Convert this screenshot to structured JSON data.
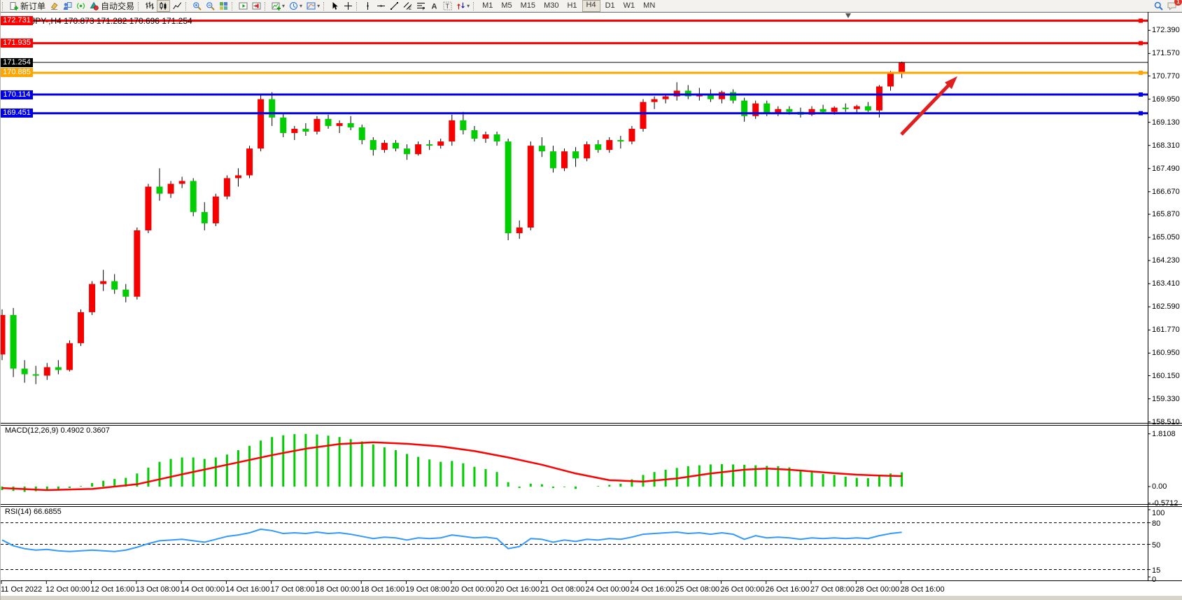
{
  "toolbar": {
    "new_order_label": "新订单",
    "autotrade_label": "自动交易",
    "groups": [
      {
        "buttons": [
          {
            "icon": "doc-plus",
            "name": "new-order-button",
            "label_key": "new_order_label"
          },
          {
            "icon": "ink",
            "name": "styler-button"
          },
          {
            "icon": "person",
            "name": "market-watch-button"
          },
          {
            "icon": "signal",
            "name": "signals-button"
          },
          {
            "icon": "autotrade",
            "name": "autotrade-button",
            "label_key": "autotrade_label"
          }
        ]
      },
      {
        "buttons": [
          {
            "icon": "bars",
            "name": "bar-chart-button"
          },
          {
            "icon": "candles",
            "name": "candlestick-button",
            "active": true
          },
          {
            "icon": "linechart",
            "name": "line-chart-button"
          }
        ]
      },
      {
        "buttons": [
          {
            "icon": "zoom-in",
            "name": "zoom-in-button"
          },
          {
            "icon": "zoom-out",
            "name": "zoom-out-button"
          },
          {
            "icon": "tile",
            "name": "tile-windows-button"
          }
        ]
      },
      {
        "buttons": [
          {
            "icon": "autoscroll",
            "name": "auto-scroll-button"
          },
          {
            "icon": "chart-shift",
            "name": "chart-shift-button"
          }
        ]
      },
      {
        "buttons": [
          {
            "icon": "indicators",
            "name": "indicators-button",
            "caret": true
          },
          {
            "icon": "clock",
            "name": "periods-button",
            "caret": true
          },
          {
            "icon": "template",
            "name": "templates-button",
            "caret": true
          }
        ]
      },
      {
        "buttons": [
          {
            "icon": "cursor",
            "name": "cursor-button"
          },
          {
            "icon": "crosshair",
            "name": "crosshair-button"
          }
        ]
      },
      {
        "buttons": [
          {
            "icon": "vline",
            "name": "vline-button"
          },
          {
            "icon": "hline",
            "name": "hline-button"
          },
          {
            "icon": "trendline",
            "name": "trendline-button"
          },
          {
            "icon": "channel",
            "name": "channel-button"
          },
          {
            "icon": "fibo",
            "name": "fibo-button"
          },
          {
            "icon": "text",
            "name": "text-button"
          },
          {
            "icon": "label",
            "name": "label-button"
          },
          {
            "icon": "shapes",
            "name": "shapes-button",
            "caret": true
          }
        ]
      }
    ],
    "timeframes": [
      {
        "label": "M1"
      },
      {
        "label": "M5"
      },
      {
        "label": "M15"
      },
      {
        "label": "M30"
      },
      {
        "label": "H1"
      },
      {
        "label": "H4",
        "active": true
      },
      {
        "label": "D1"
      },
      {
        "label": "W1"
      },
      {
        "label": "MN"
      }
    ],
    "right": [
      {
        "icon": "search",
        "name": "search-button"
      },
      {
        "icon": "comment",
        "name": "notifications-button",
        "badge": "1"
      }
    ]
  },
  "chart": {
    "title": "GBPJPY-,H4  170.873 171.282 170.696 171.254",
    "expand_glyph": "▼"
  },
  "panes": {
    "macd_label": "MACD(12,26,9) 0.4902 0.3607",
    "rsi_label": "RSI(14) 66.6855"
  },
  "chart_data": {
    "type": "candlestick",
    "symbol": "GBPJPY-",
    "period": "H4",
    "ohlc_display": {
      "open": 170.873,
      "high": 171.282,
      "low": 170.696,
      "close": 171.254
    },
    "up_color": "#F60000",
    "down_color": "#00CE00",
    "wick_color": "#000000",
    "price_ticks": [
      172.39,
      171.57,
      170.77,
      169.95,
      169.13,
      168.31,
      167.49,
      166.67,
      165.87,
      165.05,
      164.23,
      163.41,
      162.59,
      161.77,
      160.95,
      160.15,
      159.33,
      158.51
    ],
    "price_range": [
      158.51,
      172.731
    ],
    "hlines": [
      {
        "price": 172.731,
        "label": "172.731",
        "color": "#FF0000",
        "width": 3,
        "left_handle": true
      },
      {
        "price": 171.935,
        "label": "171.935",
        "color": "#FF0000",
        "width": 3
      },
      {
        "price": 171.254,
        "label": "171.254",
        "color": "#000000",
        "width": 1,
        "bid_line": true
      },
      {
        "price": 170.885,
        "label": "170.885",
        "color": "#FFA500",
        "width": 3
      },
      {
        "price": 170.114,
        "label": "170.114",
        "color": "#0000E8",
        "width": 3
      },
      {
        "price": 169.451,
        "label": "169.451",
        "color": "#0000E8",
        "width": 3
      }
    ],
    "time_labels": [
      "11 Oct 2022",
      "12 Oct 00:00",
      "12 Oct 16:00",
      "13 Oct 08:00",
      "14 Oct 00:00",
      "14 Oct 16:00",
      "17 Oct 08:00",
      "18 Oct 00:00",
      "18 Oct 16:00",
      "19 Oct 08:00",
      "20 Oct 00:00",
      "20 Oct 16:00",
      "21 Oct 08:00",
      "24 Oct 00:00",
      "24 Oct 16:00",
      "25 Oct 08:00",
      "26 Oct 00:00",
      "26 Oct 16:00",
      "27 Oct 08:00",
      "28 Oct 00:00",
      "28 Oct 16:00"
    ],
    "candles": [
      [
        160.9,
        162.5,
        160.7,
        162.3
      ],
      [
        162.3,
        162.55,
        160.1,
        160.4
      ],
      [
        160.4,
        160.7,
        159.9,
        160.2
      ],
      [
        160.2,
        160.5,
        159.85,
        160.15
      ],
      [
        160.15,
        160.6,
        160.0,
        160.45
      ],
      [
        160.45,
        160.7,
        160.2,
        160.35
      ],
      [
        160.35,
        161.4,
        160.3,
        161.3
      ],
      [
        161.3,
        162.5,
        161.2,
        162.4
      ],
      [
        162.4,
        163.5,
        162.3,
        163.4
      ],
      [
        163.4,
        163.9,
        163.15,
        163.5
      ],
      [
        163.5,
        163.75,
        163.05,
        163.2
      ],
      [
        163.2,
        163.4,
        162.75,
        162.95
      ],
      [
        162.95,
        165.4,
        162.85,
        165.3
      ],
      [
        165.3,
        166.95,
        165.2,
        166.85
      ],
      [
        166.85,
        167.5,
        166.35,
        166.6
      ],
      [
        166.6,
        167.05,
        166.45,
        166.95
      ],
      [
        166.95,
        167.2,
        166.8,
        167.05
      ],
      [
        167.05,
        167.15,
        165.8,
        165.95
      ],
      [
        165.95,
        166.3,
        165.3,
        165.55
      ],
      [
        165.55,
        166.6,
        165.45,
        166.5
      ],
      [
        166.5,
        167.25,
        166.4,
        167.15
      ],
      [
        167.15,
        167.5,
        166.85,
        167.25
      ],
      [
        167.25,
        168.3,
        167.15,
        168.2
      ],
      [
        168.2,
        170.15,
        168.1,
        169.95
      ],
      [
        169.95,
        170.2,
        169.0,
        169.3
      ],
      [
        169.3,
        169.45,
        168.6,
        168.75
      ],
      [
        168.75,
        169.0,
        168.5,
        168.9
      ],
      [
        168.9,
        169.1,
        168.65,
        168.8
      ],
      [
        168.8,
        169.35,
        168.7,
        169.25
      ],
      [
        169.25,
        169.4,
        168.9,
        169.0
      ],
      [
        169.0,
        169.2,
        168.75,
        169.1
      ],
      [
        169.1,
        169.35,
        168.85,
        168.95
      ],
      [
        168.95,
        169.05,
        168.35,
        168.5
      ],
      [
        168.5,
        168.6,
        167.95,
        168.15
      ],
      [
        168.15,
        168.5,
        168.05,
        168.4
      ],
      [
        168.4,
        168.5,
        168.1,
        168.2
      ],
      [
        168.2,
        168.35,
        167.8,
        168.0
      ],
      [
        168.0,
        168.45,
        167.95,
        168.35
      ],
      [
        168.35,
        168.5,
        168.15,
        168.3
      ],
      [
        168.3,
        168.55,
        168.2,
        168.45
      ],
      [
        168.45,
        169.4,
        168.3,
        169.2
      ],
      [
        169.2,
        169.5,
        168.7,
        168.85
      ],
      [
        168.85,
        169.0,
        168.45,
        168.55
      ],
      [
        168.55,
        168.8,
        168.4,
        168.7
      ],
      [
        168.7,
        168.8,
        168.3,
        168.45
      ],
      [
        168.45,
        168.55,
        164.95,
        165.2
      ],
      [
        165.2,
        165.65,
        165.0,
        165.4
      ],
      [
        165.4,
        168.45,
        165.3,
        168.3
      ],
      [
        168.3,
        168.6,
        167.9,
        168.1
      ],
      [
        168.1,
        168.3,
        167.35,
        167.5
      ],
      [
        167.5,
        168.2,
        167.4,
        168.1
      ],
      [
        168.1,
        168.25,
        167.55,
        167.85
      ],
      [
        167.85,
        168.45,
        167.75,
        168.35
      ],
      [
        168.35,
        168.5,
        168.05,
        168.15
      ],
      [
        168.15,
        168.6,
        168.05,
        168.5
      ],
      [
        168.5,
        168.65,
        168.2,
        168.45
      ],
      [
        168.45,
        169.0,
        168.35,
        168.9
      ],
      [
        168.9,
        169.95,
        168.8,
        169.85
      ],
      [
        169.85,
        170.05,
        169.6,
        169.95
      ],
      [
        169.95,
        170.15,
        169.8,
        170.05
      ],
      [
        170.05,
        170.55,
        169.9,
        170.25
      ],
      [
        170.25,
        170.45,
        169.95,
        170.05
      ],
      [
        170.05,
        170.35,
        169.9,
        170.15
      ],
      [
        170.15,
        170.3,
        169.85,
        169.95
      ],
      [
        169.95,
        170.25,
        169.8,
        170.2
      ],
      [
        170.2,
        170.3,
        169.8,
        169.9
      ],
      [
        169.9,
        170.0,
        169.15,
        169.35
      ],
      [
        169.35,
        169.9,
        169.25,
        169.8
      ],
      [
        169.8,
        169.9,
        169.35,
        169.45
      ],
      [
        169.45,
        169.7,
        169.35,
        169.6
      ],
      [
        169.6,
        169.7,
        169.4,
        169.5
      ],
      [
        169.5,
        169.65,
        169.3,
        169.4
      ],
      [
        169.4,
        169.7,
        169.35,
        169.6
      ],
      [
        169.6,
        169.75,
        169.45,
        169.5
      ],
      [
        169.5,
        169.7,
        169.4,
        169.65
      ],
      [
        169.65,
        169.8,
        169.5,
        169.6
      ],
      [
        169.6,
        169.75,
        169.45,
        169.7
      ],
      [
        169.7,
        169.85,
        169.5,
        169.55
      ],
      [
        169.55,
        170.45,
        169.3,
        170.4
      ],
      [
        170.4,
        170.95,
        170.25,
        170.88
      ],
      [
        170.873,
        171.282,
        170.696,
        171.254
      ]
    ],
    "macd": {
      "label": "MACD(12,26,9) 0.4902 0.3607",
      "value": 0.4902,
      "signal_value": 0.3607,
      "ticks": [
        {
          "v": 1.8108,
          "label": "1.8108"
        },
        {
          "v": 0,
          "label": "0.00"
        },
        {
          "v": -0.5712,
          "label": "-0.5712"
        }
      ],
      "range": [
        -0.5712,
        1.8108
      ],
      "hist_color": "#00CE00",
      "signal_color": "#FF0000",
      "hist": [
        -0.12,
        -0.15,
        -0.18,
        -0.16,
        -0.12,
        -0.1,
        -0.05,
        0.02,
        0.12,
        0.2,
        0.26,
        0.3,
        0.45,
        0.65,
        0.85,
        0.95,
        1.0,
        1.0,
        0.95,
        1.0,
        1.1,
        1.25,
        1.4,
        1.58,
        1.7,
        1.76,
        1.8,
        1.81,
        1.79,
        1.75,
        1.7,
        1.63,
        1.55,
        1.45,
        1.35,
        1.25,
        1.12,
        1.02,
        0.93,
        0.85,
        0.88,
        0.8,
        0.68,
        0.6,
        0.5,
        0.15,
        -0.05,
        0.1,
        0.08,
        -0.05,
        -0.02,
        -0.08,
        0.0,
        0.02,
        0.06,
        0.1,
        0.25,
        0.4,
        0.5,
        0.58,
        0.64,
        0.7,
        0.73,
        0.76,
        0.77,
        0.76,
        0.75,
        0.73,
        0.71,
        0.7,
        0.66,
        0.55,
        0.5,
        0.43,
        0.4,
        0.34,
        0.3,
        0.29,
        0.38,
        0.45,
        0.49
      ],
      "signal_points": [
        [
          0,
          -0.05
        ],
        [
          4,
          -0.12
        ],
        [
          8,
          -0.08
        ],
        [
          12,
          0.08
        ],
        [
          16,
          0.42
        ],
        [
          20,
          0.75
        ],
        [
          24,
          1.08
        ],
        [
          27,
          1.3
        ],
        [
          30,
          1.46
        ],
        [
          33,
          1.52
        ],
        [
          36,
          1.47
        ],
        [
          39,
          1.38
        ],
        [
          42,
          1.22
        ],
        [
          45,
          1.0
        ],
        [
          48,
          0.75
        ],
        [
          51,
          0.45
        ],
        [
          54,
          0.22
        ],
        [
          57,
          0.17
        ],
        [
          60,
          0.28
        ],
        [
          63,
          0.45
        ],
        [
          66,
          0.58
        ],
        [
          68,
          0.62
        ],
        [
          70,
          0.58
        ],
        [
          72,
          0.52
        ],
        [
          74,
          0.46
        ],
        [
          76,
          0.41
        ],
        [
          78,
          0.38
        ],
        [
          80,
          0.36
        ]
      ]
    },
    "rsi": {
      "label": "RSI(14) 66.6855",
      "value": 66.6855,
      "ticks": [
        {
          "v": 100,
          "label": "100"
        },
        {
          "v": 80,
          "label": "80"
        },
        {
          "v": 50,
          "label": "50"
        },
        {
          "v": 15,
          "label": "15"
        },
        {
          "v": 0,
          "label": "0"
        }
      ],
      "levels": [
        80,
        50,
        15
      ],
      "range": [
        0,
        100
      ],
      "color": "#3399FF",
      "values": [
        56,
        48,
        44,
        42,
        43,
        41,
        40,
        41,
        42,
        41,
        40,
        42,
        46,
        51,
        55,
        56,
        57,
        55,
        53,
        57,
        61,
        63,
        66,
        71,
        69,
        65,
        66,
        65,
        67,
        65,
        66,
        64,
        61,
        58,
        60,
        59,
        56,
        59,
        58,
        59,
        63,
        61,
        59,
        60,
        58,
        44,
        47,
        58,
        57,
        53,
        56,
        54,
        57,
        56,
        58,
        57,
        60,
        64,
        65,
        66,
        67,
        65,
        66,
        64,
        66,
        64,
        57,
        62,
        59,
        60,
        59,
        57,
        59,
        58,
        59,
        58,
        59,
        58,
        62,
        65,
        66.7
      ]
    },
    "annotation_arrow": {
      "from": [
        1287,
        192
      ],
      "to": [
        1367,
        109
      ],
      "color": "#E02020"
    }
  }
}
